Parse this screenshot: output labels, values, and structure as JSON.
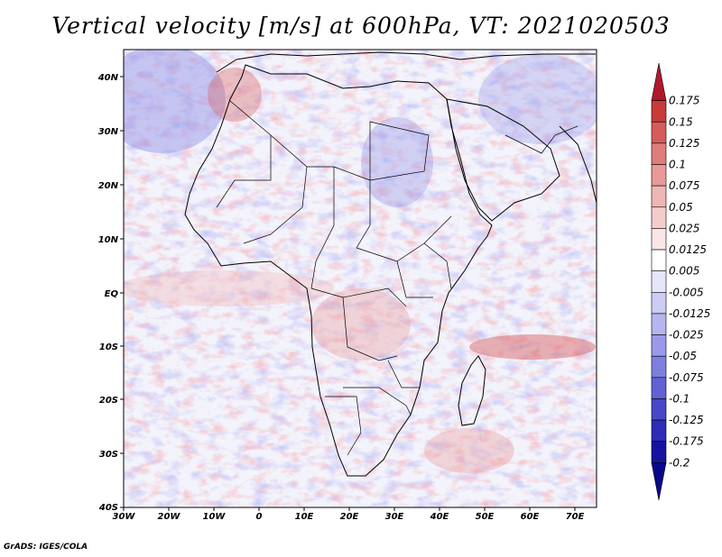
{
  "title": "Vertical velocity [m/s] at 600hPa, VT: 2021020503",
  "footer": "GrADS: IGES/COLA",
  "map": {
    "region": "Africa",
    "lon_range": [
      -30,
      75
    ],
    "lat_range": [
      -40,
      45
    ],
    "lon_ticks": [
      "30W",
      "20W",
      "10W",
      "0",
      "10E",
      "20E",
      "30E",
      "40E",
      "50E",
      "60E",
      "70E"
    ],
    "lat_ticks": [
      "40N",
      "30N",
      "20N",
      "10N",
      "EQ",
      "10S",
      "20S",
      "30S",
      "40S"
    ]
  },
  "colorbar": {
    "levels": [
      "0.175",
      "0.15",
      "0.125",
      "0.1",
      "0.075",
      "0.05",
      "0.025",
      "0.0125",
      "0.005",
      "-0.005",
      "-0.0125",
      "-0.025",
      "-0.05",
      "-0.075",
      "-0.1",
      "-0.125",
      "-0.175",
      "-0.2"
    ],
    "colors": [
      "#b2182b",
      "#c83a3a",
      "#d65b5b",
      "#e07c7c",
      "#e99999",
      "#f0b5b5",
      "#f5cccc",
      "#fae6e6",
      "#ffffff",
      "#e6e6fa",
      "#ccccf5",
      "#b5b5ef",
      "#9a9ae8",
      "#7f7fe0",
      "#6262d6",
      "#4747c8",
      "#2c2cb8",
      "#1414a0",
      "#08088a"
    ]
  }
}
